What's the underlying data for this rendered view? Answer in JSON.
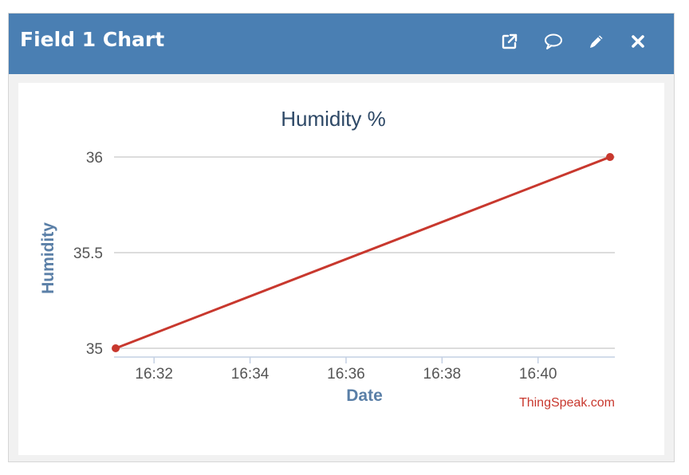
{
  "widget": {
    "title": "Field 1 Chart",
    "icons": [
      "external-link-icon",
      "comment-icon",
      "pencil-icon",
      "close-icon"
    ]
  },
  "colors": {
    "header": "#4a7fb3",
    "series": "#c8382e",
    "axis_label": "#5a7fa7",
    "title": "#2d4866",
    "credit": "#c8382e"
  },
  "chart_data": {
    "type": "line",
    "title": "Humidity %",
    "xlabel": "Date",
    "ylabel": "Humidity",
    "x_ticks": [
      "16:32",
      "16:34",
      "16:36",
      "16:38",
      "16:40"
    ],
    "x_tick_minutes": [
      32,
      34,
      36,
      38,
      40
    ],
    "y_ticks": [
      "35",
      "35.5",
      "36"
    ],
    "y_tick_values": [
      35,
      35.5,
      36
    ],
    "xlim": [
      "16:31",
      "16:41.6"
    ],
    "ylim": [
      35,
      36
    ],
    "grid": true,
    "series": [
      {
        "x": [
          "16:31.2",
          "16:41.5"
        ],
        "values": [
          35,
          36
        ]
      }
    ],
    "credit": "ThingSpeak.com"
  }
}
